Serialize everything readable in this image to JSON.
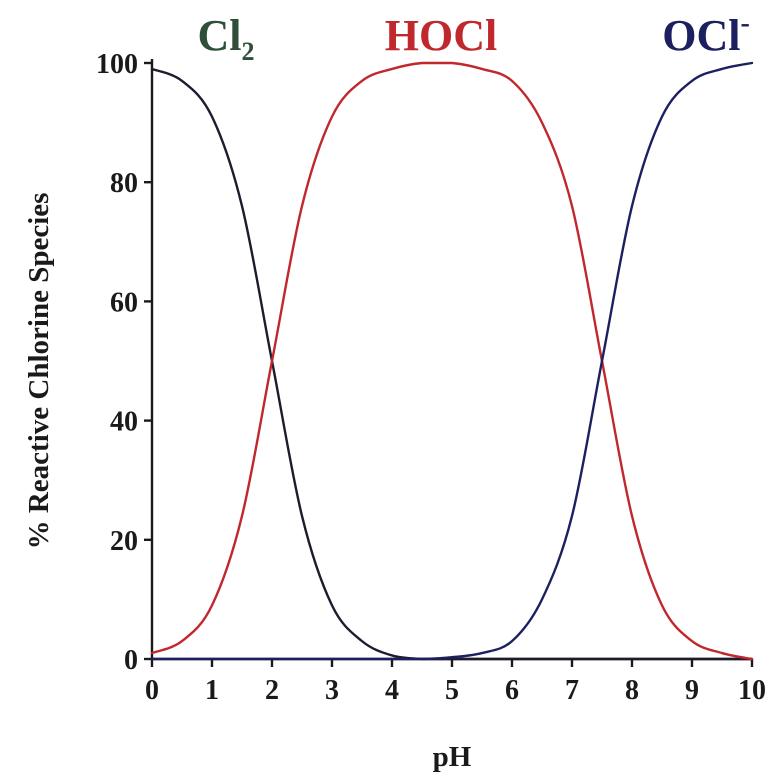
{
  "chart_data": {
    "type": "line",
    "title": "",
    "xlabel": "pH",
    "ylabel": "% Reactive Chlorine Species",
    "xlim": [
      0,
      10
    ],
    "ylim": [
      0,
      100
    ],
    "x_ticks": [
      "0",
      "1",
      "2",
      "3",
      "4",
      "5",
      "6",
      "7",
      "8",
      "9",
      "10"
    ],
    "y_ticks": [
      "0",
      "20",
      "40",
      "60",
      "80",
      "100"
    ],
    "grid": false,
    "legend": "species names as colored labels above the plot",
    "series": [
      {
        "name": "Cl2",
        "label_main": "Cl",
        "label_sub": "2",
        "color": "#2f4f3a",
        "line_color": "#1c1c2e",
        "x": [
          0,
          0.5,
          1,
          1.5,
          2,
          2.5,
          3,
          3.5,
          4,
          4.5,
          5,
          5.5,
          6,
          6.5,
          7,
          7.5,
          8,
          8.5,
          9,
          9.5,
          10
        ],
        "y": [
          99,
          97,
          91,
          76,
          50,
          24,
          9,
          3,
          0.6,
          0,
          0,
          0,
          0,
          0,
          0,
          0,
          0,
          0,
          0,
          0,
          0
        ]
      },
      {
        "name": "HOCl",
        "label_main": "HOCl",
        "label_sub": "",
        "color": "#c0282d",
        "line_color": "#c0282d",
        "x": [
          0,
          0.5,
          1,
          1.5,
          2,
          2.5,
          3,
          3.5,
          4,
          4.5,
          5,
          5.5,
          6,
          6.5,
          7,
          7.5,
          8,
          8.5,
          9,
          9.5,
          10
        ],
        "y": [
          1,
          3,
          9,
          24,
          50,
          76,
          91,
          97,
          99,
          100,
          100,
          99,
          97,
          90,
          76,
          50,
          24,
          9,
          3,
          1,
          0
        ]
      },
      {
        "name": "OCl-",
        "label_main": "OCl",
        "label_sup": "-",
        "color": "#1d2060",
        "line_color": "#1d2060",
        "x": [
          0,
          0.5,
          1,
          1.5,
          2,
          2.5,
          3,
          3.5,
          4,
          4.5,
          5,
          5.5,
          6,
          6.5,
          7,
          7.5,
          8,
          8.5,
          9,
          9.5,
          10
        ],
        "y": [
          0,
          0,
          0,
          0,
          0,
          0,
          0,
          0,
          0,
          0,
          0.3,
          1,
          3,
          10,
          24,
          50,
          76,
          91,
          97,
          99,
          100
        ]
      }
    ]
  }
}
